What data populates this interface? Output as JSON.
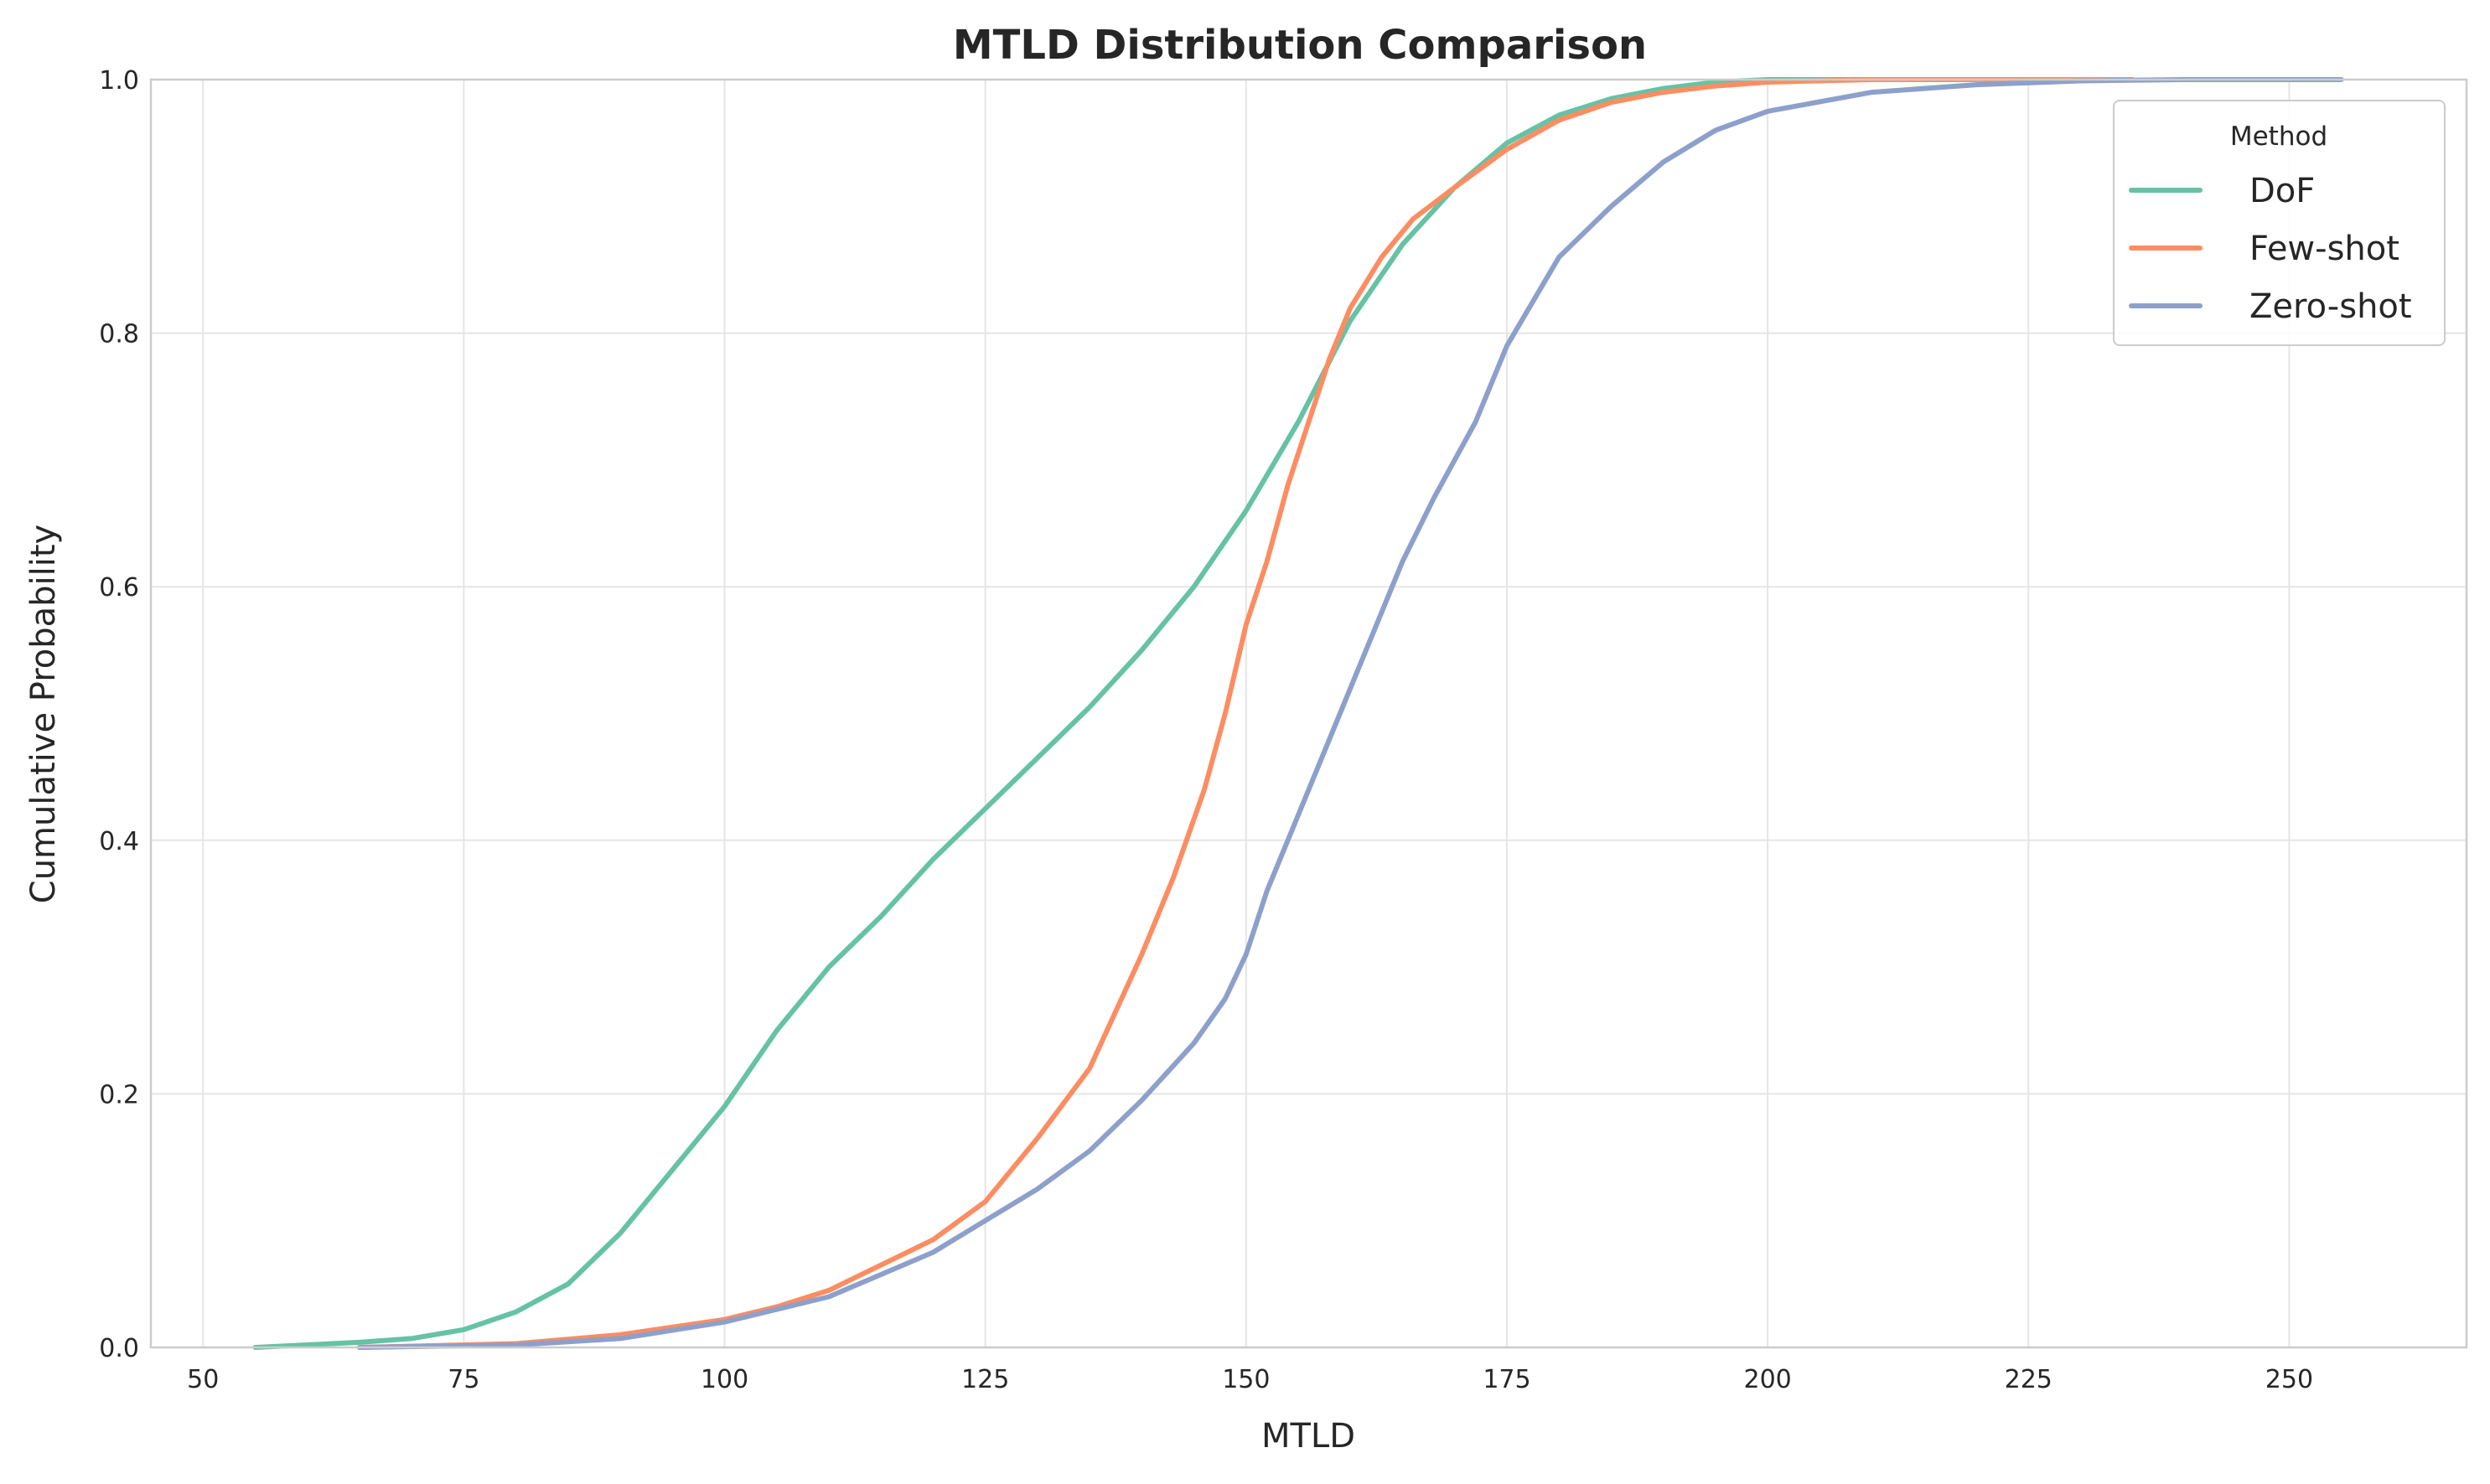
{
  "chart_data": {
    "type": "line",
    "title": "MTLD Distribution Comparison",
    "xlabel": "MTLD",
    "ylabel": "Cumulative Probability",
    "xlim": [
      45,
      267
    ],
    "ylim": [
      0,
      1.0
    ],
    "xticks": [
      50,
      75,
      100,
      125,
      150,
      175,
      200,
      225,
      250
    ],
    "xtick_labels": [
      "50",
      "75",
      "100",
      "125",
      "150",
      "175",
      "200",
      "225",
      "250"
    ],
    "yticks": [
      0.0,
      0.2,
      0.4,
      0.6,
      0.8,
      1.0
    ],
    "ytick_labels": [
      "0.0",
      "0.2",
      "0.4",
      "0.6",
      "0.8",
      "1.0"
    ],
    "grid": true,
    "legend": {
      "title": "Method",
      "placement": "top-right"
    },
    "series": [
      {
        "name": "DoF",
        "color": "#66c2a5",
        "x": [
          55,
          60,
          65,
          70,
          75,
          80,
          85,
          90,
          95,
          100,
          105,
          110,
          115,
          120,
          125,
          130,
          135,
          140,
          145,
          150,
          155,
          160,
          165,
          170,
          175,
          180,
          185,
          190,
          195,
          200,
          210,
          220
        ],
        "y": [
          0.0,
          0.002,
          0.004,
          0.007,
          0.014,
          0.028,
          0.05,
          0.09,
          0.14,
          0.19,
          0.25,
          0.3,
          0.34,
          0.385,
          0.425,
          0.465,
          0.505,
          0.55,
          0.6,
          0.66,
          0.73,
          0.81,
          0.87,
          0.915,
          0.95,
          0.972,
          0.985,
          0.993,
          0.998,
          1.0,
          1.0,
          1.0
        ]
      },
      {
        "name": "Few-shot",
        "color": "#fc8d62",
        "x": [
          65,
          70,
          80,
          90,
          100,
          105,
          110,
          115,
          120,
          125,
          130,
          135,
          140,
          143,
          146,
          148,
          150,
          152,
          154,
          156,
          158,
          160,
          163,
          166,
          170,
          175,
          180,
          185,
          190,
          195,
          200,
          210,
          220,
          235
        ],
        "y": [
          0.0,
          0.001,
          0.003,
          0.01,
          0.022,
          0.032,
          0.045,
          0.065,
          0.085,
          0.115,
          0.165,
          0.22,
          0.31,
          0.37,
          0.44,
          0.5,
          0.57,
          0.62,
          0.68,
          0.73,
          0.78,
          0.82,
          0.86,
          0.89,
          0.915,
          0.945,
          0.968,
          0.982,
          0.99,
          0.995,
          0.998,
          1.0,
          1.0,
          1.0
        ]
      },
      {
        "name": "Zero-shot",
        "color": "#8da0cb",
        "x": [
          65,
          80,
          90,
          100,
          110,
          120,
          130,
          135,
          140,
          145,
          148,
          150,
          152,
          155,
          158,
          160,
          162,
          165,
          168,
          170,
          172,
          175,
          180,
          185,
          190,
          195,
          200,
          210,
          220,
          230,
          240,
          255
        ],
        "y": [
          0.0,
          0.002,
          0.007,
          0.02,
          0.04,
          0.075,
          0.125,
          0.155,
          0.195,
          0.24,
          0.275,
          0.31,
          0.36,
          0.42,
          0.48,
          0.52,
          0.56,
          0.62,
          0.67,
          0.7,
          0.73,
          0.79,
          0.86,
          0.9,
          0.935,
          0.96,
          0.975,
          0.99,
          0.996,
          0.999,
          1.0,
          1.0
        ]
      }
    ]
  }
}
